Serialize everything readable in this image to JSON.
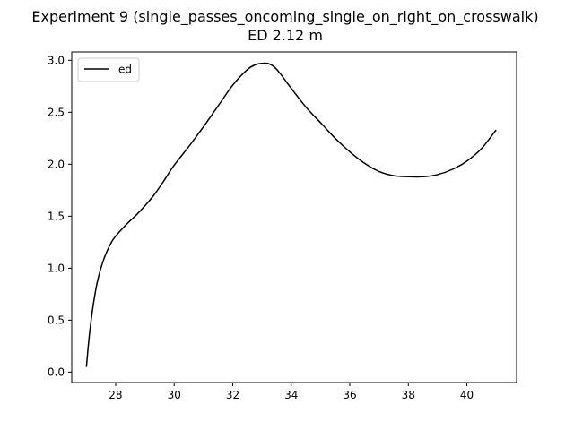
{
  "chart_data": {
    "type": "line",
    "title": "Experiment 9 (single_passes_oncoming_single_on_right_on_crosswalk)",
    "subtitle": "ED 2.12 m",
    "xlabel": "",
    "ylabel": "",
    "xlim": [
      26.5,
      41.7
    ],
    "ylim": [
      -0.1,
      3.08
    ],
    "xticks": [
      28,
      30,
      32,
      34,
      36,
      38,
      40
    ],
    "yticks": [
      0.0,
      0.5,
      1.0,
      1.5,
      2.0,
      2.5,
      3.0
    ],
    "xtick_labels": [
      "28",
      "30",
      "32",
      "34",
      "36",
      "38",
      "40"
    ],
    "ytick_labels": [
      "0.0",
      "0.5",
      "1.0",
      "1.5",
      "2.0",
      "2.5",
      "3.0"
    ],
    "grid": false,
    "legend": "upper-left",
    "series": [
      {
        "name": "ed",
        "color": "#000000",
        "x": [
          27.0,
          27.1,
          27.2,
          27.3,
          27.4,
          27.55,
          27.7,
          27.9,
          28.1,
          28.4,
          28.7,
          29.0,
          29.3,
          29.6,
          30.0,
          30.5,
          31.0,
          31.5,
          32.0,
          32.5,
          32.8,
          33.0,
          33.2,
          33.4,
          33.6,
          34.0,
          34.5,
          35.0,
          35.5,
          36.0,
          36.5,
          37.0,
          37.5,
          38.0,
          38.5,
          39.0,
          39.5,
          40.0,
          40.5,
          41.0
        ],
        "values": [
          0.05,
          0.35,
          0.58,
          0.76,
          0.9,
          1.05,
          1.16,
          1.27,
          1.34,
          1.43,
          1.51,
          1.6,
          1.7,
          1.82,
          1.99,
          2.17,
          2.36,
          2.56,
          2.76,
          2.91,
          2.96,
          2.97,
          2.97,
          2.94,
          2.88,
          2.73,
          2.55,
          2.4,
          2.25,
          2.12,
          2.01,
          1.93,
          1.89,
          1.88,
          1.88,
          1.9,
          1.95,
          2.03,
          2.15,
          2.33
        ]
      }
    ]
  }
}
